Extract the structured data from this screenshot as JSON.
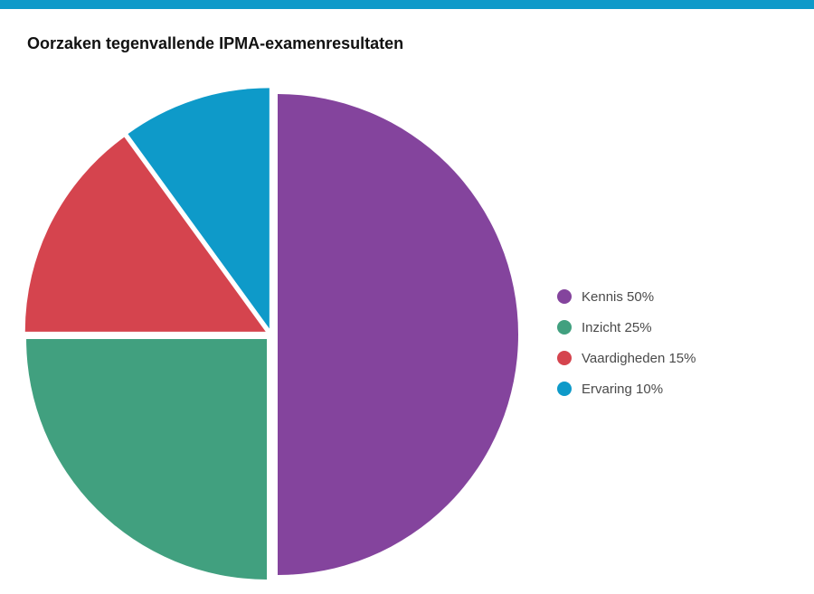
{
  "header": {
    "bar_color": "#0e9ac9"
  },
  "chart_data": {
    "type": "pie",
    "title": "Oorzaken tegenvallende IPMA-examenresultaten",
    "slices": [
      {
        "label": "Kennis 50%",
        "name": "Kennis",
        "value": 50,
        "color": "#84449d"
      },
      {
        "label": "Inzicht 25%",
        "name": "Inzicht",
        "value": 25,
        "color": "#41a07f"
      },
      {
        "label": "Vaardigheden 15%",
        "name": "Vaardigheden",
        "value": 15,
        "color": "#d5444e"
      },
      {
        "label": "Ervaring 10%",
        "name": "Ervaring",
        "value": 10,
        "color": "#0e9ac9"
      }
    ],
    "legend_position": "right"
  }
}
